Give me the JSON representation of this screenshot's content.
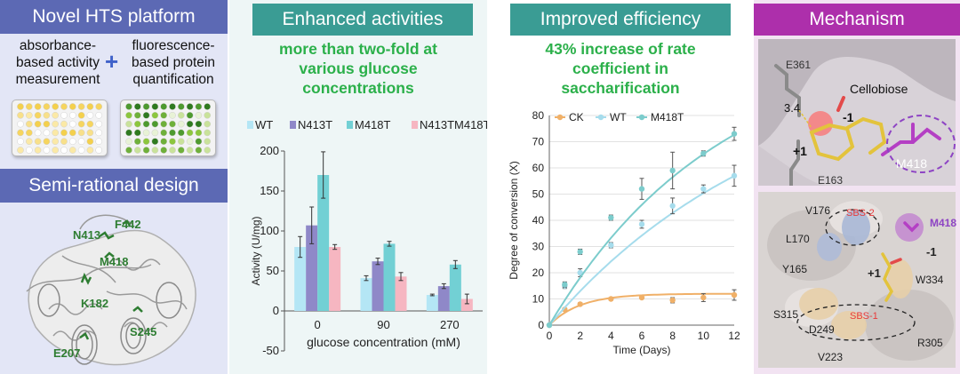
{
  "hts": {
    "title": "Novel HTS platform",
    "left_text_lines": [
      "absorbance-",
      "based activity",
      "measurement"
    ],
    "right_text_lines": [
      "fluorescence-",
      "based protein",
      "quantification"
    ],
    "plus_symbol": "+"
  },
  "semi_rational": {
    "title": "Semi-rational design",
    "residue_labels": [
      "N413",
      "F442",
      "M418",
      "K182",
      "S245",
      "E207"
    ]
  },
  "activities": {
    "title": "Enhanced activities",
    "subtitle_lines": [
      "more than two-fold at",
      "various glucose",
      "concentrations"
    ]
  },
  "efficiency": {
    "title": "Improved efficiency",
    "subtitle_lines": [
      "43% increase of rate",
      "coefficient in",
      "saccharification"
    ]
  },
  "mechanism": {
    "title": "Mechanism",
    "top_labels": [
      "E361",
      "Cellobiose",
      "3.4",
      "-1",
      "+1",
      "M418",
      "E163"
    ],
    "bottom_labels": [
      "V176",
      "SBS-2",
      "M418",
      "L170",
      "-1",
      "Y165",
      "+1",
      "W334",
      "S315",
      "SBS-1",
      "D249",
      "R305",
      "V223"
    ]
  },
  "colors": {
    "header_blue": "#5c69b4",
    "header_teal": "#3a9c94",
    "header_purple": "#ad2fab",
    "accent_green": "#2bb04a",
    "wt": "#b4e6f5",
    "n413t": "#8f88c8",
    "m418t": "#72d0d4",
    "n413tm418t": "#f6b6c1",
    "ck": "#f0b068",
    "line_wt": "#a6dcec",
    "line_m418t": "#7ccccc"
  },
  "chart_data": [
    {
      "type": "bar",
      "title": "",
      "xlabel": "glucose concentration  (mM)",
      "ylabel": "Activity  (U/mg)",
      "categories": [
        "0",
        "90",
        "270"
      ],
      "ylim": [
        -50,
        200
      ],
      "yticks": [
        "-50",
        "0",
        "50",
        "100",
        "150",
        "200"
      ],
      "series": [
        {
          "name": "WT",
          "values": [
            80,
            41,
            20
          ],
          "errors": [
            13,
            3,
            1
          ]
        },
        {
          "name": "N413T",
          "values": [
            107,
            62,
            31
          ],
          "errors": [
            23,
            4,
            3
          ]
        },
        {
          "name": "M418T",
          "values": [
            170,
            84,
            58
          ],
          "errors": [
            29,
            3,
            5
          ]
        },
        {
          "name": "N413TM418T",
          "values": [
            80,
            43,
            15
          ],
          "errors": [
            3,
            5,
            6
          ]
        }
      ],
      "legend": "top"
    },
    {
      "type": "line",
      "title": "",
      "xlabel": "Time (Days)",
      "ylabel": "Degree of conversion (X)",
      "xlim": [
        0,
        12
      ],
      "ylim": [
        0,
        80
      ],
      "xticks": [
        "0",
        "2",
        "4",
        "6",
        "8",
        "10",
        "12"
      ],
      "yticks": [
        "0",
        "10",
        "20",
        "30",
        "40",
        "50",
        "60",
        "70",
        "80"
      ],
      "series": [
        {
          "name": "CK",
          "x": [
            0,
            1,
            2,
            4,
            6,
            8,
            10,
            12
          ],
          "y": [
            0,
            6,
            8,
            10,
            10.5,
            9.5,
            10.5,
            11.5
          ],
          "errors": [
            0,
            0.5,
            0.5,
            0.5,
            0.5,
            1,
            1.5,
            2
          ],
          "fit_k": 0.5,
          "fit_max": 12
        },
        {
          "name": "WT",
          "x": [
            0,
            1,
            2,
            4,
            6,
            8,
            10,
            12
          ],
          "y": [
            0,
            15,
            20,
            30.5,
            38.5,
            45.5,
            52,
            57
          ],
          "errors": [
            0,
            1,
            1.5,
            1,
            1.5,
            3,
            1.5,
            4
          ],
          "fit_k": 0.068,
          "fit_max": 102
        },
        {
          "name": "M418T",
          "x": [
            0,
            1,
            2,
            4,
            6,
            8,
            10,
            12
          ],
          "y": [
            0,
            15.5,
            28,
            41,
            52,
            59,
            65.5,
            73
          ],
          "errors": [
            0,
            1,
            1,
            1,
            4,
            7,
            1,
            2.5
          ],
          "fit_k": 0.09,
          "fit_max": 110
        }
      ],
      "legend": "top-left"
    }
  ]
}
